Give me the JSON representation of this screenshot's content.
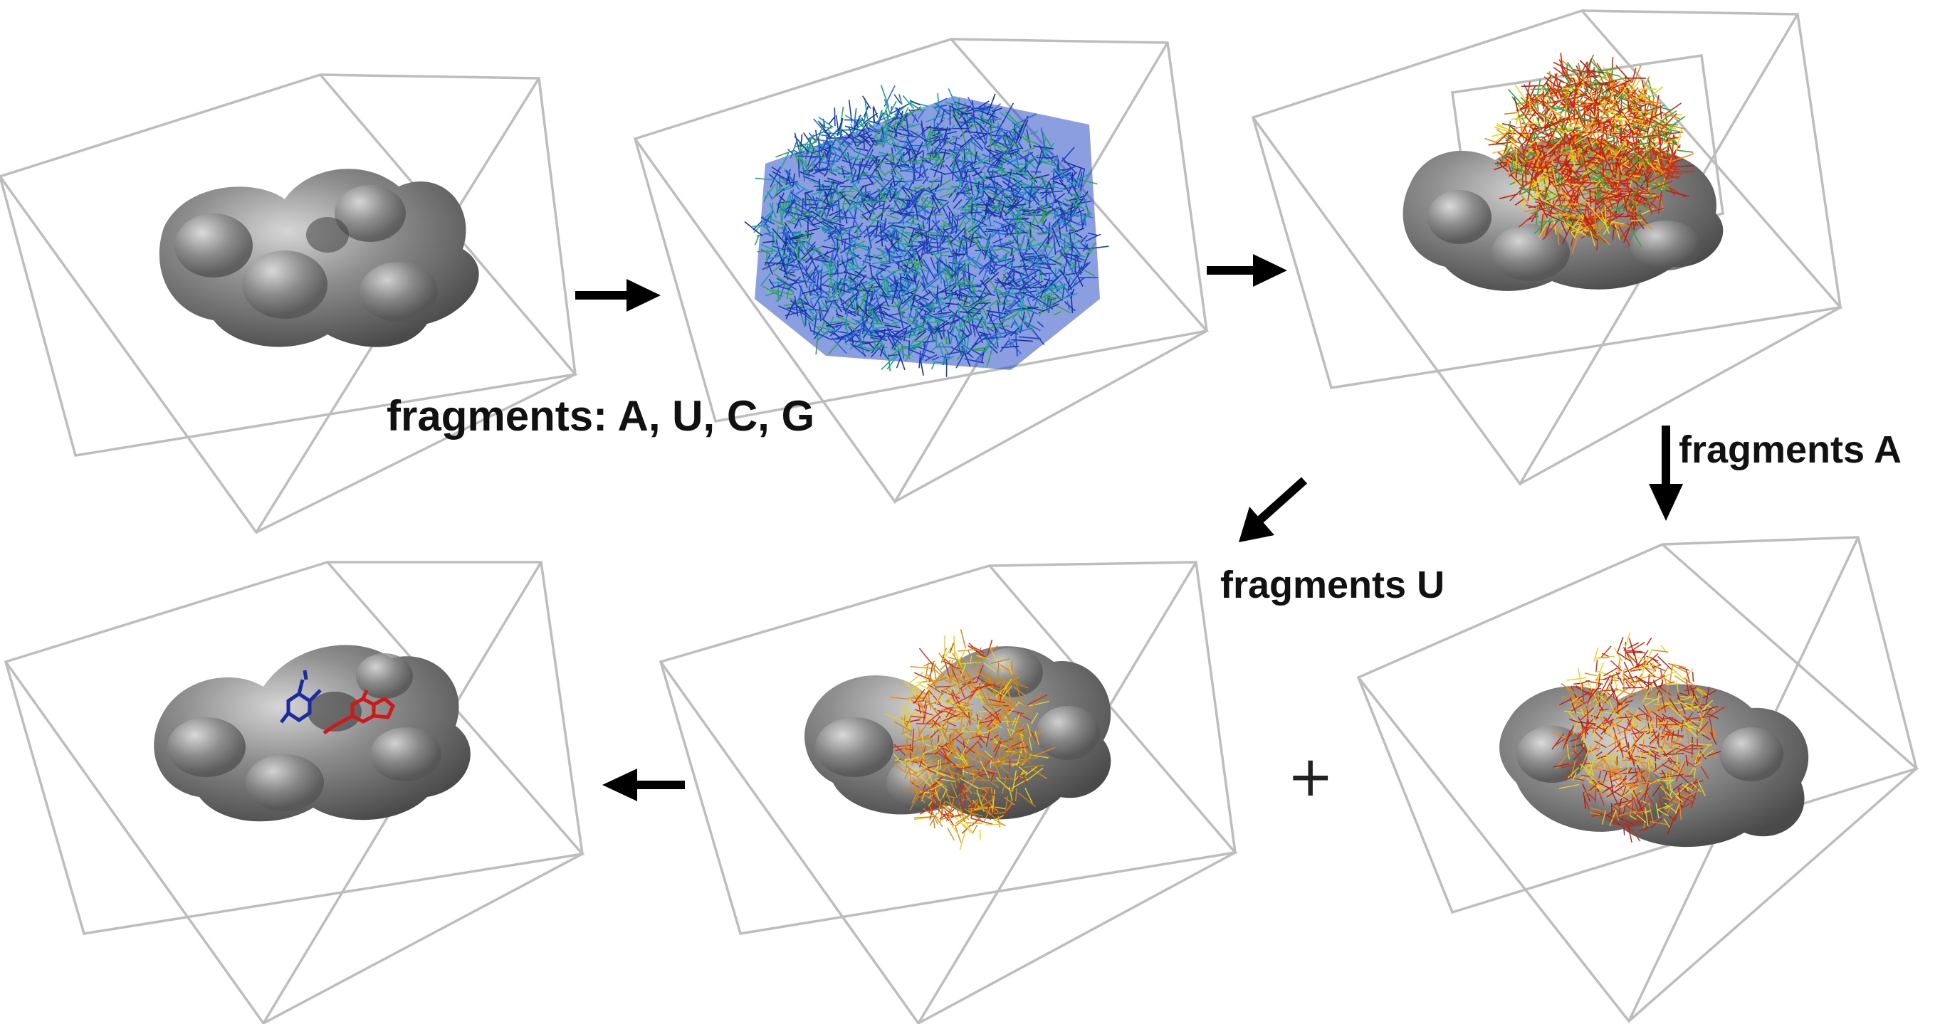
{
  "labels": {
    "all_fragments": "fragments: A, U, C, G",
    "fragments_a": "fragments A",
    "fragments_u": "fragments U",
    "combine": "+"
  },
  "colors": {
    "box_edge": "#b8b8b8",
    "protein_surface": "#7a7a7a",
    "arrow": "#000000",
    "fragments_blue": "#1f3fbf",
    "fragments_green": "#2ea84a",
    "fragments_red": "#d42a12",
    "fragments_orange": "#e88a10",
    "fragments_yellow": "#e8d21a",
    "ligand_blue": "#1a2c9e",
    "ligand_red": "#d01818"
  },
  "panels": [
    {
      "id": "panel-1",
      "content": "protein"
    },
    {
      "id": "panel-2",
      "content": "fragment-cloud"
    },
    {
      "id": "panel-3",
      "content": "clustered-fragments"
    },
    {
      "id": "panel-4",
      "content": "fragments-a"
    },
    {
      "id": "panel-5",
      "content": "fragments-u"
    },
    {
      "id": "panel-6",
      "content": "final-ligand"
    }
  ]
}
